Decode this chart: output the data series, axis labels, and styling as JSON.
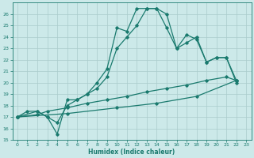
{
  "xlabel": "Humidex (Indice chaleur)",
  "background_color": "#cce9e9",
  "grid_color": "#aacccc",
  "line_color": "#1a7a6e",
  "xlim": [
    -0.5,
    23.5
  ],
  "ylim": [
    15,
    27
  ],
  "yticks": [
    15,
    16,
    17,
    18,
    19,
    20,
    21,
    22,
    23,
    24,
    25,
    26
  ],
  "xticks": [
    0,
    1,
    2,
    3,
    4,
    5,
    6,
    7,
    8,
    9,
    10,
    11,
    12,
    13,
    14,
    15,
    16,
    17,
    18,
    19,
    20,
    21,
    22,
    23
  ],
  "line1_x": [
    0,
    1,
    2,
    3,
    4,
    5,
    6,
    7,
    8,
    9,
    10,
    11,
    12,
    13,
    14,
    15,
    16,
    17,
    18,
    19,
    20,
    21,
    22
  ],
  "line1_y": [
    17.0,
    17.5,
    17.5,
    17.0,
    15.5,
    18.5,
    18.5,
    19.0,
    20.0,
    21.2,
    24.8,
    24.5,
    26.5,
    26.5,
    26.5,
    24.8,
    23.0,
    24.2,
    23.8,
    21.8,
    22.2,
    22.2,
    20.2
  ],
  "line2_x": [
    0,
    2,
    3,
    4,
    5,
    6,
    7,
    8,
    9,
    10,
    11,
    12,
    13,
    14,
    15,
    16,
    17,
    18,
    19,
    20,
    21,
    22
  ],
  "line2_y": [
    17.0,
    17.5,
    17.0,
    16.5,
    18.0,
    18.5,
    19.0,
    19.5,
    20.5,
    23.0,
    24.0,
    25.0,
    26.5,
    26.5,
    26.0,
    23.0,
    23.5,
    24.0,
    21.8,
    22.2,
    22.2,
    20.0
  ],
  "line3_x": [
    0,
    2,
    3,
    5,
    7,
    9,
    11,
    13,
    15,
    17,
    19,
    21,
    22
  ],
  "line3_y": [
    17.0,
    17.2,
    17.5,
    17.8,
    18.2,
    18.5,
    18.8,
    19.2,
    19.5,
    19.8,
    20.2,
    20.5,
    20.2
  ],
  "line4_x": [
    0,
    5,
    10,
    14,
    18,
    22
  ],
  "line4_y": [
    17.0,
    17.3,
    17.8,
    18.2,
    18.8,
    20.2
  ]
}
